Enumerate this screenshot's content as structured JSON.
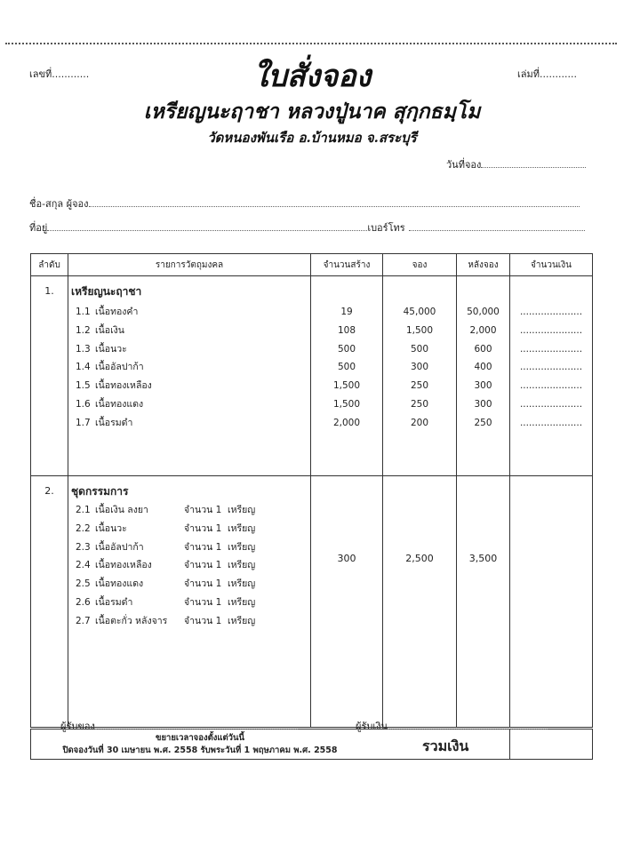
{
  "header": {
    "doc_no_label": "เลขที่............",
    "book_no_label": "เล่มที่............",
    "title": "ใบสั่งจอง",
    "subtitle": "เหรียญนะฤาชา หลวงปู่นาค สุกฺกธมฺโม",
    "location": "วัดหนองพันเรือ อ.บ้านหมอ จ.สระบุรี",
    "date_label": "วันที่จอง"
  },
  "form": {
    "name_label": "ชื่อ-สกุล ผู้จอง",
    "address_label": "ที่อยู่",
    "phone_label": "เบอร์โทร"
  },
  "table": {
    "columns": [
      "ลำดับ",
      "รายการวัตถุมงคล",
      "จำนวนสร้าง",
      "จอง",
      "หลังจอง",
      "จำนวนเงิน"
    ],
    "section1": {
      "no": "1.",
      "title": "เหรียญนะฤาชา",
      "items": [
        {
          "code": "1.1",
          "name": "เนื้อทองคำ",
          "made": "19",
          "reserve": "45,000",
          "after": "50,000",
          "amount": "....................."
        },
        {
          "code": "1.2",
          "name": "เนื้อเงิน",
          "made": "108",
          "reserve": "1,500",
          "after": "2,000",
          "amount": "....................."
        },
        {
          "code": "1.3",
          "name": "เนื้อนวะ",
          "made": "500",
          "reserve": "500",
          "after": "600",
          "amount": "....................."
        },
        {
          "code": "1.4",
          "name": "เนื้ออัลปาก้า",
          "made": "500",
          "reserve": "300",
          "after": "400",
          "amount": "....................."
        },
        {
          "code": "1.5",
          "name": "เนื้อทองเหลือง",
          "made": "1,500",
          "reserve": "250",
          "after": "300",
          "amount": "....................."
        },
        {
          "code": "1.6",
          "name": "เนื้อทองแดง",
          "made": "1,500",
          "reserve": "250",
          "after": "300",
          "amount": "....................."
        },
        {
          "code": "1.7",
          "name": "เนื้อรมดำ",
          "made": "2,000",
          "reserve": "200",
          "after": "250",
          "amount": "....................."
        }
      ]
    },
    "section2": {
      "no": "2.",
      "title": "ชุดกรรมการ",
      "made": "300",
      "reserve": "2,500",
      "after": "3,500",
      "items": [
        {
          "code": "2.1",
          "name": "เนื้อเงิน ลงยา",
          "qty": "จำนวน 1  เหรียญ"
        },
        {
          "code": "2.2",
          "name": "เนื้อนวะ",
          "qty": "จำนวน 1  เหรียญ"
        },
        {
          "code": "2.3",
          "name": "เนื้ออัลปาก้า",
          "qty": "จำนวน 1  เหรียญ"
        },
        {
          "code": "2.4",
          "name": "เนื้อทองเหลือง",
          "qty": "จำนวน 1  เหรียญ"
        },
        {
          "code": "2.5",
          "name": "เนื้อทองแดง",
          "qty": "จำนวน 1  เหรียญ"
        },
        {
          "code": "2.6",
          "name": "เนื้อรมดำ",
          "qty": "จำนวน 1  เหรียญ"
        },
        {
          "code": "2.7",
          "name": "เนื้อตะกั่ว หลังจาร",
          "qty": "จำนวน 1  เหรียญ"
        }
      ]
    },
    "footer": {
      "note1": "ขยายเวลาจองตั้งแต่วันนี้",
      "note2": "ปิดจองวันที่ 30 เมษายน พ.ศ. 2558 รับพระวันที่ 1 พฤษภาคม พ.ศ. 2558",
      "total_label": "รวมเงิน"
    }
  },
  "signatures": {
    "receiver_goods": "ผู้รับของ",
    "receiver_money": "ผู้รับเงิน"
  }
}
